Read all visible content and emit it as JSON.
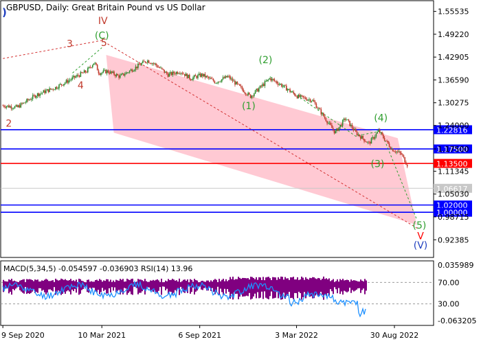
{
  "header": {
    "symbol_line": "GBPUSD, Daily:  Great Britain Pound vs US Dollar",
    "corner_mark": ")"
  },
  "chart_data": {
    "type": "candlestick",
    "title": "GBPUSD, Daily:  Great Britain Pound vs US Dollar",
    "price_axis": {
      "ticks": [
        "1.55535",
        "1.49220",
        "1.42905",
        "1.36590",
        "1.30275",
        "1.24000",
        "1.17500",
        "1.11345",
        "1.05030",
        "0.98715",
        "0.92385"
      ],
      "ylim": [
        0.875,
        1.585
      ]
    },
    "time_axis": {
      "labels": [
        "9 Sep 2020",
        "10 Mar 2021",
        "6 Sep 2021",
        "3 Mar 2022",
        "30 Aug 2022"
      ],
      "xlim": [
        "2020-09-05",
        "2022-11-10"
      ]
    },
    "price_path": [
      [
        "2020-09-09",
        1.295
      ],
      [
        "2020-10-05",
        1.29
      ],
      [
        "2020-11-10",
        1.325
      ],
      [
        "2020-12-15",
        1.345
      ],
      [
        "2021-01-15",
        1.37
      ],
      [
        "2021-02-10",
        1.39
      ],
      [
        "2021-02-24",
        1.415
      ],
      [
        "2021-03-05",
        1.385
      ],
      [
        "2021-03-20",
        1.39
      ],
      [
        "2021-04-12",
        1.375
      ],
      [
        "2021-05-05",
        1.395
      ],
      [
        "2021-06-01",
        1.42
      ],
      [
        "2021-06-15",
        1.41
      ],
      [
        "2021-07-10",
        1.38
      ],
      [
        "2021-08-01",
        1.39
      ],
      [
        "2021-08-20",
        1.37
      ],
      [
        "2021-09-10",
        1.38
      ],
      [
        "2021-10-05",
        1.36
      ],
      [
        "2021-10-28",
        1.375
      ],
      [
        "2021-12-08",
        1.32
      ],
      [
        "2022-01-13",
        1.37
      ],
      [
        "2022-02-05",
        1.35
      ],
      [
        "2022-03-05",
        1.32
      ],
      [
        "2022-04-01",
        1.31
      ],
      [
        "2022-05-13",
        1.22
      ],
      [
        "2022-06-01",
        1.26
      ],
      [
        "2022-06-20",
        1.22
      ],
      [
        "2022-07-14",
        1.19
      ],
      [
        "2022-08-01",
        1.225
      ],
      [
        "2022-08-25",
        1.175
      ],
      [
        "2022-09-12",
        1.16
      ],
      [
        "2022-09-23",
        1.13
      ]
    ],
    "horizontal_levels": [
      {
        "label": "1.22816",
        "value": 1.22816,
        "color": "#0000ff"
      },
      {
        "label": "1.17500",
        "value": 1.175,
        "color": "#0000ff"
      },
      {
        "label": "1.13500",
        "value": 1.135,
        "color": "#ff0000"
      },
      {
        "label": "1.06617",
        "value": 1.06617,
        "color": "#c8c8c8"
      },
      {
        "label": "1.02000",
        "value": 1.02,
        "color": "#0000ff"
      },
      {
        "label": "1.00000",
        "value": 1.0,
        "color": "#0000ff"
      }
    ],
    "channel": {
      "color": "#ffc0cb",
      "corners": [
        [
          "2021-03-18",
          1.435
        ],
        [
          "2022-09-05",
          1.205
        ],
        [
          "2022-10-10",
          0.965
        ],
        [
          "2021-04-01",
          1.22
        ]
      ]
    },
    "wave_labels": [
      {
        "text": "IV",
        "date": "2021-03-12",
        "price": 1.52,
        "color": "#c0392b"
      },
      {
        "text": "(C)",
        "date": "2021-03-10",
        "price": 1.48,
        "color": "#2e9e2e"
      },
      {
        "text": "5",
        "date": "2021-03-14",
        "price": 1.46,
        "color": "#c0392b"
      },
      {
        "text": "3",
        "date": "2021-01-10",
        "price": 1.457,
        "color": "#c0392b"
      },
      {
        "text": "4",
        "date": "2021-01-30",
        "price": 1.342,
        "color": "#c0392b"
      },
      {
        "text": "2",
        "date": "2020-09-20",
        "price": 1.237,
        "color": "#c0392b"
      },
      {
        "text": "(2)",
        "date": "2022-01-05",
        "price": 1.412,
        "color": "#2e9e2e"
      },
      {
        "text": "(1)",
        "date": "2021-12-05",
        "price": 1.285,
        "color": "#2e9e2e"
      },
      {
        "text": "(4)",
        "date": "2022-08-05",
        "price": 1.252,
        "color": "#2e9e2e"
      },
      {
        "text": "(3)",
        "date": "2022-07-30",
        "price": 1.125,
        "color": "#2e9e2e"
      },
      {
        "text": "(5)",
        "date": "2022-10-15",
        "price": 0.955,
        "color": "#2e9e2e"
      },
      {
        "text": "V",
        "date": "2022-10-17",
        "price": 0.925,
        "color": "#ff0000"
      },
      {
        "text": "(V)",
        "date": "2022-10-17",
        "price": 0.9,
        "color": "#1f3fbf"
      }
    ],
    "dashed_paths": [
      {
        "color": "#d32f2f",
        "points": [
          [
            "2020-09-09",
            1.425
          ],
          [
            "2021-03-10",
            1.475
          ],
          [
            "2022-10-12",
            0.955
          ]
        ]
      },
      {
        "color": "#2e9e2e",
        "points": [
          [
            "2021-01-15",
            1.385
          ],
          [
            "2021-03-10",
            1.455
          ]
        ]
      },
      {
        "color": "#2e9e2e",
        "points": [
          [
            "2022-01-13",
            1.375
          ],
          [
            "2022-06-20",
            1.21
          ],
          [
            "2022-08-05",
            1.225
          ],
          [
            "2022-10-10",
            0.98
          ]
        ]
      }
    ],
    "indicator": {
      "label": "MACD(5,34,5) -0.054597 -0.036903 RSI(14) 13.96",
      "left_ticks": [
        "0.035989",
        "-0.063205"
      ],
      "right_ticks": [
        "70.00",
        "30.00"
      ],
      "macd_color": "#800080",
      "rsi_color": "#1e90ff"
    }
  }
}
